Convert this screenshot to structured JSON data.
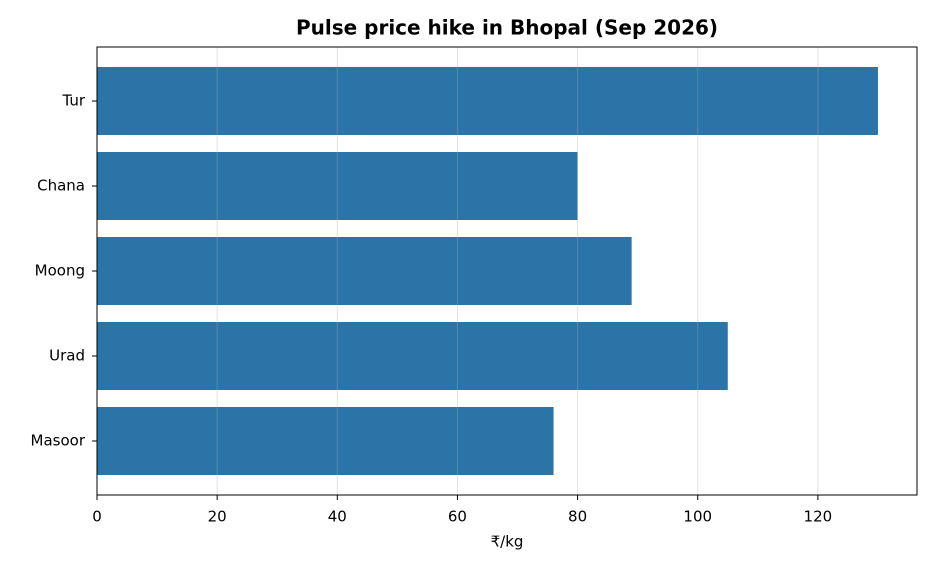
{
  "chart_data": {
    "type": "barh",
    "title": "Pulse price hike in Bhopal (Sep 2026)",
    "xlabel": "₹/kg",
    "categories": [
      "Tur",
      "Chana",
      "Moong",
      "Urad",
      "Masoor"
    ],
    "values": [
      130,
      80,
      89,
      105,
      76
    ],
    "color": "#2a74a8",
    "xlim": [
      0,
      136.5
    ],
    "xticks": [
      0,
      20,
      40,
      60,
      80,
      100,
      120
    ],
    "grid": true
  }
}
